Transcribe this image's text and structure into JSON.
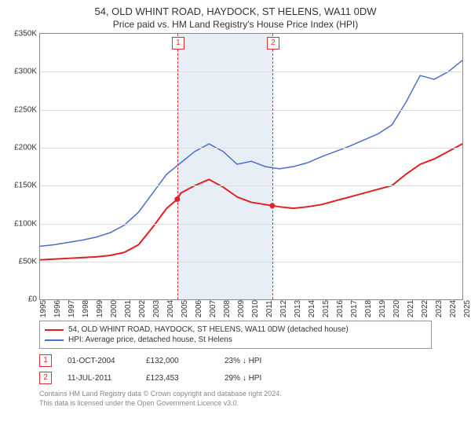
{
  "title": "54, OLD WHINT ROAD, HAYDOCK, ST HELENS, WA11 0DW",
  "subtitle": "Price paid vs. HM Land Registry's House Price Index (HPI)",
  "chart": {
    "type": "line",
    "background_color": "#ffffff",
    "grid_color": "#dddddd",
    "border_color": "#888888",
    "ylim": [
      0,
      350000
    ],
    "ytick_step": 50000,
    "ytick_labels": [
      "£0",
      "£50K",
      "£100K",
      "£150K",
      "£200K",
      "£250K",
      "£300K",
      "£350K"
    ],
    "xlim": [
      1995,
      2025
    ],
    "xtick_step": 1,
    "xtick_labels": [
      "1995",
      "1996",
      "1997",
      "1998",
      "1999",
      "2000",
      "2001",
      "2002",
      "2003",
      "2004",
      "2005",
      "2006",
      "2007",
      "2008",
      "2009",
      "2010",
      "2011",
      "2012",
      "2013",
      "2014",
      "2015",
      "2016",
      "2017",
      "2018",
      "2019",
      "2020",
      "2021",
      "2022",
      "2023",
      "2024",
      "2025"
    ],
    "shade": {
      "from": 2004.75,
      "to": 2011.5,
      "color": "#e8eef6"
    },
    "markers": [
      {
        "id": "1",
        "x": 2004.75,
        "box_color": "#e03030"
      },
      {
        "id": "2",
        "x": 2011.5,
        "box_color": "#e03030"
      }
    ],
    "series": [
      {
        "name": "property",
        "label": "54, OLD WHINT ROAD, HAYDOCK, ST HELENS, WA11 0DW (detached house)",
        "color": "#e02020",
        "line_width": 2,
        "data": [
          [
            1995,
            52000
          ],
          [
            1996,
            53000
          ],
          [
            1997,
            54000
          ],
          [
            1998,
            55000
          ],
          [
            1999,
            56000
          ],
          [
            2000,
            58000
          ],
          [
            2001,
            62000
          ],
          [
            2002,
            72000
          ],
          [
            2003,
            95000
          ],
          [
            2004,
            120000
          ],
          [
            2004.75,
            132000
          ],
          [
            2005,
            140000
          ],
          [
            2006,
            150000
          ],
          [
            2007,
            158000
          ],
          [
            2008,
            148000
          ],
          [
            2009,
            135000
          ],
          [
            2010,
            128000
          ],
          [
            2011,
            125000
          ],
          [
            2011.5,
            123453
          ],
          [
            2012,
            122000
          ],
          [
            2013,
            120000
          ],
          [
            2014,
            122000
          ],
          [
            2015,
            125000
          ],
          [
            2016,
            130000
          ],
          [
            2017,
            135000
          ],
          [
            2018,
            140000
          ],
          [
            2019,
            145000
          ],
          [
            2020,
            150000
          ],
          [
            2021,
            165000
          ],
          [
            2022,
            178000
          ],
          [
            2023,
            185000
          ],
          [
            2024,
            195000
          ],
          [
            2025,
            205000
          ]
        ]
      },
      {
        "name": "hpi",
        "label": "HPI: Average price, detached house, St Helens",
        "color": "#4a6fc8",
        "line_width": 1.5,
        "data": [
          [
            1995,
            70000
          ],
          [
            1996,
            72000
          ],
          [
            1997,
            75000
          ],
          [
            1998,
            78000
          ],
          [
            1999,
            82000
          ],
          [
            2000,
            88000
          ],
          [
            2001,
            98000
          ],
          [
            2002,
            115000
          ],
          [
            2003,
            140000
          ],
          [
            2004,
            165000
          ],
          [
            2005,
            180000
          ],
          [
            2006,
            195000
          ],
          [
            2007,
            205000
          ],
          [
            2008,
            195000
          ],
          [
            2009,
            178000
          ],
          [
            2010,
            182000
          ],
          [
            2011,
            175000
          ],
          [
            2012,
            172000
          ],
          [
            2013,
            175000
          ],
          [
            2014,
            180000
          ],
          [
            2015,
            188000
          ],
          [
            2016,
            195000
          ],
          [
            2017,
            202000
          ],
          [
            2018,
            210000
          ],
          [
            2019,
            218000
          ],
          [
            2020,
            230000
          ],
          [
            2021,
            260000
          ],
          [
            2022,
            295000
          ],
          [
            2023,
            290000
          ],
          [
            2024,
            300000
          ],
          [
            2025,
            315000
          ]
        ]
      }
    ]
  },
  "legend": {
    "items": [
      {
        "color": "#e02020",
        "label": "54, OLD WHINT ROAD, HAYDOCK, ST HELENS, WA11 0DW (detached house)"
      },
      {
        "color": "#4a6fc8",
        "label": "HPI: Average price, detached house, St Helens"
      }
    ]
  },
  "events": [
    {
      "id": "1",
      "date": "01-OCT-2004",
      "price": "£132,000",
      "diff": "23% ↓ HPI"
    },
    {
      "id": "2",
      "date": "11-JUL-2011",
      "price": "£123,453",
      "diff": "29% ↓ HPI"
    }
  ],
  "footer": {
    "line1": "Contains HM Land Registry data © Crown copyright and database right 2024.",
    "line2": "This data is licensed under the Open Government Licence v3.0."
  }
}
